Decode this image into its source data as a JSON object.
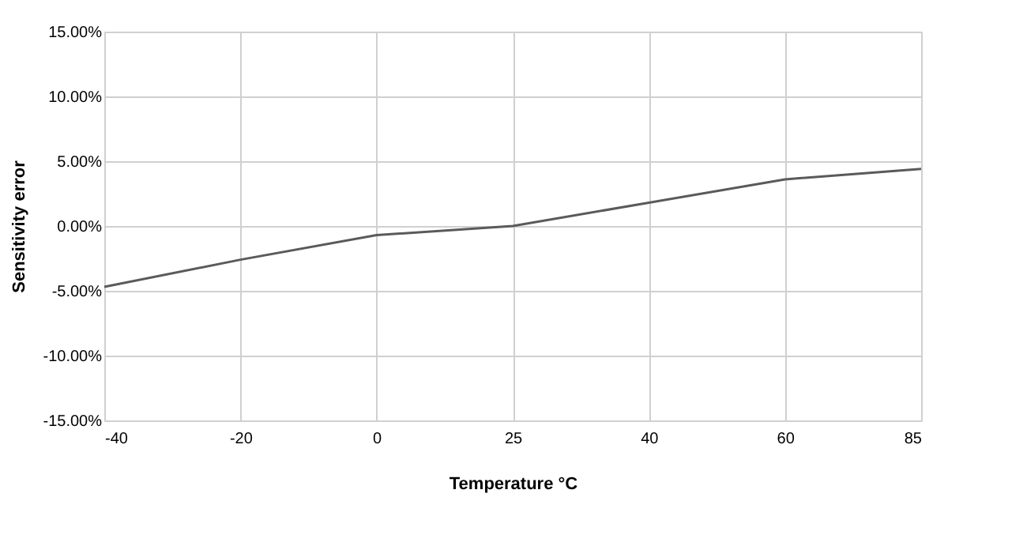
{
  "chart_data": {
    "type": "line",
    "xlabel": "Temperature °C",
    "ylabel": "Sensitivity error",
    "categories": [
      "-40",
      "-20",
      "0",
      "25",
      "40",
      "60",
      "85"
    ],
    "series": [
      {
        "color": "#5a5a5a",
        "values": [
          -4.7,
          -2.6,
          -0.7,
          0.0,
          1.8,
          3.6,
          4.4
        ]
      }
    ],
    "ylim": [
      -15,
      15
    ],
    "yticks": [
      {
        "value": -15,
        "label": "-15.00%"
      },
      {
        "value": -10,
        "label": "-10.00%"
      },
      {
        "value": -5,
        "label": "-5.00%"
      },
      {
        "value": 0,
        "label": "0.00%"
      },
      {
        "value": 5,
        "label": "5.00%"
      },
      {
        "value": 10,
        "label": "10.00%"
      },
      {
        "value": 15,
        "label": "15.00%"
      }
    ],
    "grid": true,
    "marker": "none",
    "line_style": "solid"
  }
}
